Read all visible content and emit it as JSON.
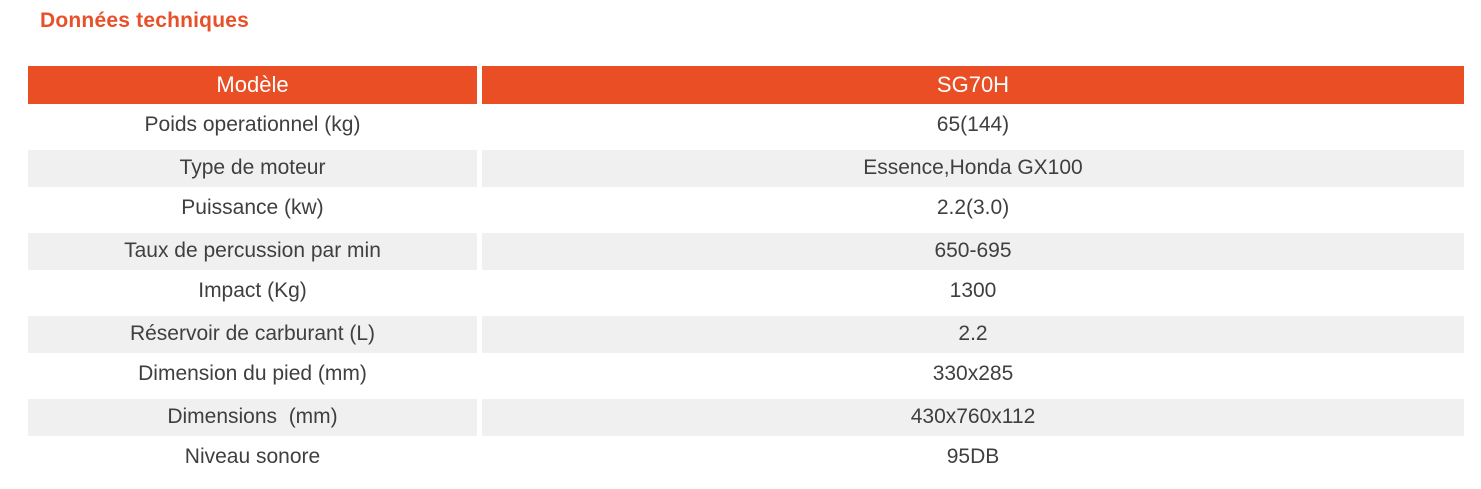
{
  "page": {
    "title": "Données techniques"
  },
  "colors": {
    "accent_title": "#e8502a",
    "header_bg": "#e94e25",
    "header_text": "#ffffff",
    "row_alt_bg": "#f0f0f0",
    "body_text": "#3f3f3f"
  },
  "table": {
    "header": {
      "label": "Modèle",
      "value": "SG70H"
    },
    "rows": [
      {
        "label": "Poids operationnel (kg)",
        "value": "65(144)"
      },
      {
        "label": "Type de moteur",
        "value": "Essence,Honda GX100"
      },
      {
        "label": "Puissance (kw)",
        "value": "2.2(3.0)"
      },
      {
        "label": "Taux de percussion par min",
        "value": "650-695"
      },
      {
        "label": "Impact (Kg)",
        "value": "1300"
      },
      {
        "label": "Réservoir de carburant (L)",
        "value": "2.2"
      },
      {
        "label": "Dimension du pied (mm)",
        "value": "330x285"
      },
      {
        "label": "Dimensions  (mm)",
        "value": "430x760x112"
      },
      {
        "label": "Niveau sonore",
        "value": "95DB"
      }
    ]
  }
}
